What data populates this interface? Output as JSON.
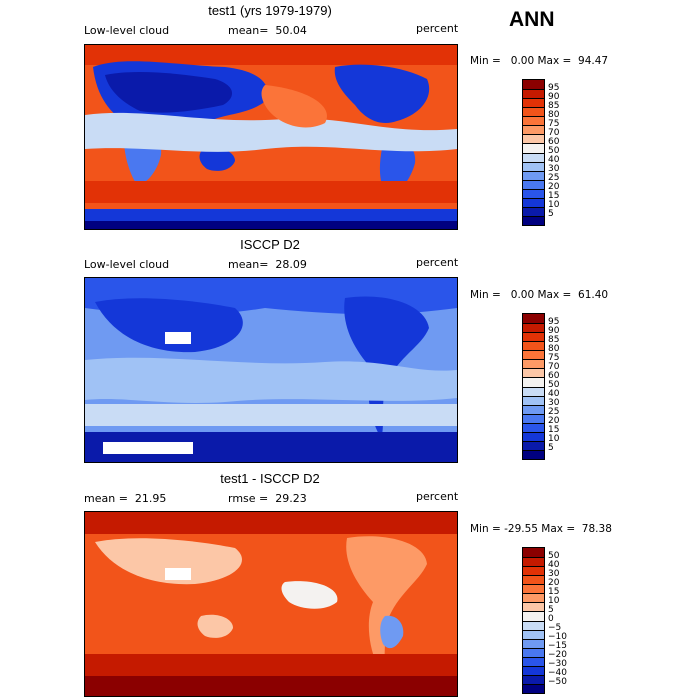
{
  "season": "ANN",
  "panels": [
    {
      "title": "test1 (yrs 1979-1979)",
      "left_label": "Low-level cloud",
      "center_label": "mean=  50.04",
      "right_label": "percent",
      "minmax": "Min =   0.00 Max =  94.47",
      "levels": [
        "95",
        "90",
        "85",
        "80",
        "75",
        "70",
        "60",
        "50",
        "40",
        "30",
        "25",
        "20",
        "15",
        "10",
        "5"
      ],
      "colors": [
        "#8b0000",
        "#c51a00",
        "#e23206",
        "#f2541a",
        "#fb7439",
        "#fd9a66",
        "#fcc7a7",
        "#f4f2f0",
        "#c9dcf5",
        "#a0c2f5",
        "#6f9af2",
        "#4a78f0",
        "#2a55ea",
        "#1437d8",
        "#0a1aaa",
        "#000080"
      ]
    },
    {
      "title": "ISCCP D2",
      "left_label": "Low-level cloud",
      "center_label": "mean=  28.09",
      "right_label": "percent",
      "minmax": "Min =   0.00 Max =  61.40",
      "levels": [
        "95",
        "90",
        "85",
        "80",
        "75",
        "70",
        "60",
        "50",
        "40",
        "30",
        "25",
        "20",
        "15",
        "10",
        "5"
      ],
      "colors": [
        "#8b0000",
        "#c51a00",
        "#e23206",
        "#f2541a",
        "#fb7439",
        "#fd9a66",
        "#fcc7a7",
        "#f4f2f0",
        "#c9dcf5",
        "#a0c2f5",
        "#6f9af2",
        "#4a78f0",
        "#2a55ea",
        "#1437d8",
        "#0a1aaa",
        "#000080"
      ]
    },
    {
      "title": "test1 - ISCCP D2",
      "left_label": "mean =  21.95",
      "center_label": "rmse =  29.23",
      "right_label": "percent",
      "minmax": "Min = -29.55 Max =  78.38",
      "levels": [
        "50",
        "40",
        "30",
        "20",
        "15",
        "10",
        "5",
        "0",
        "−5",
        "−10",
        "−15",
        "−20",
        "−30",
        "−40",
        "−50"
      ],
      "colors": [
        "#8b0000",
        "#c51a00",
        "#e23206",
        "#f2541a",
        "#fb7439",
        "#fd9a66",
        "#fcc7a7",
        "#f4f2f0",
        "#c9dcf5",
        "#a0c2f5",
        "#6f9af2",
        "#4a78f0",
        "#2a55ea",
        "#1437d8",
        "#0a1aaa",
        "#000080"
      ]
    }
  ]
}
